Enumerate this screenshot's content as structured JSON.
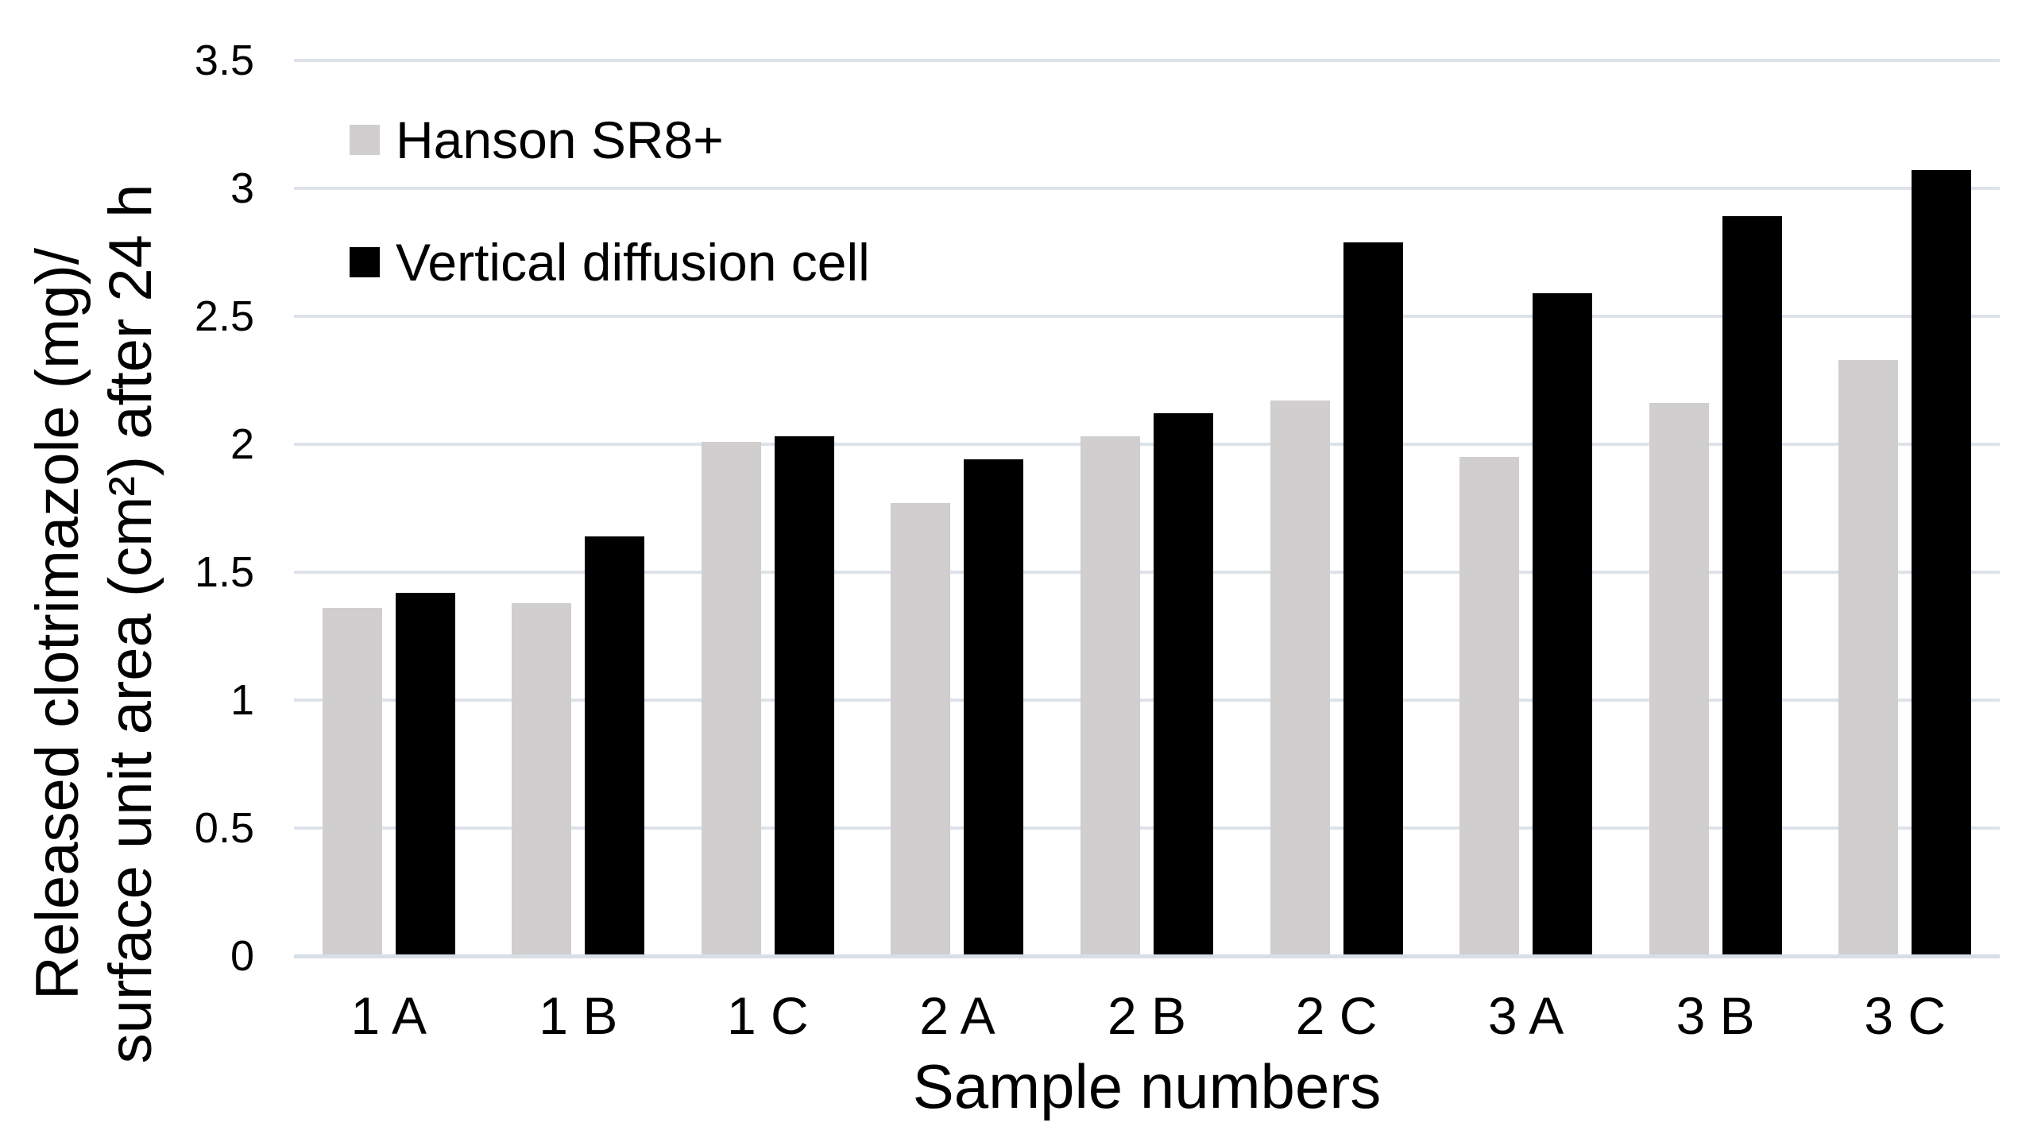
{
  "chart_data": {
    "type": "bar",
    "title": "",
    "categories": [
      "1 A",
      "1 B",
      "1 C",
      "2 A",
      "2 B",
      "2 C",
      "3 A",
      "3 B",
      "3 C"
    ],
    "series": [
      {
        "name": "Hanson SR8+",
        "color": "#d0cece",
        "values": [
          1.36,
          1.38,
          2.01,
          1.77,
          2.03,
          2.17,
          1.95,
          2.16,
          2.33
        ]
      },
      {
        "name": "Vertical diffusion cell",
        "color": "#000000",
        "values": [
          1.42,
          1.64,
          2.03,
          1.94,
          2.12,
          2.79,
          2.59,
          2.89,
          3.07
        ]
      }
    ],
    "xlabel": "Sample numbers",
    "ylabel_line1": "Released clotrimazole (mg)/",
    "ylabel_line2": "surface unit area (cm²) after 24 h",
    "ylim": [
      0,
      3.5
    ],
    "yticks": [
      "0",
      "0.5",
      "1",
      "1.5",
      "2",
      "2.5",
      "3",
      "3.5"
    ],
    "grid": "horizontal-only",
    "gridline_color": "#dee3ea",
    "axis_line_color": "#d8dee6",
    "legend_position": "top-left-inside",
    "background": "#ffffff"
  }
}
